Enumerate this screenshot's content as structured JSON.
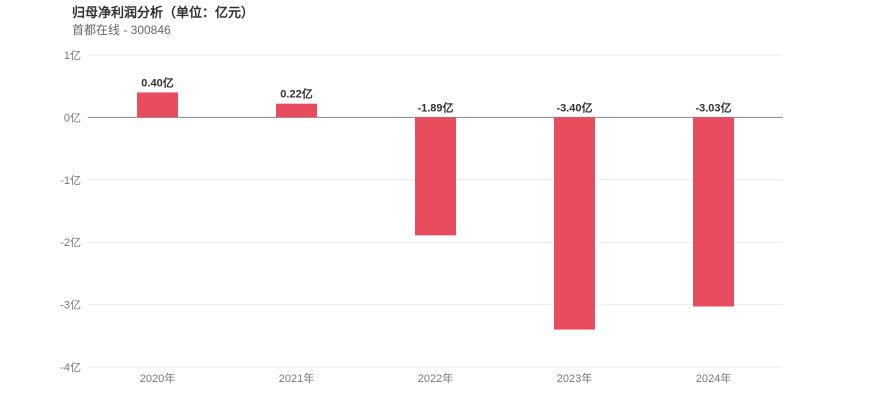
{
  "header": {
    "title": "归母净利润分析（单位：亿元）",
    "subtitle": "首都在线 - 300846"
  },
  "colors": {
    "bar": "#e84c5f",
    "grid": "#ececec",
    "zero_line": "#888888"
  },
  "chart_data": {
    "type": "bar",
    "title": "归母净利润分析（单位：亿元）",
    "subtitle": "首都在线 - 300846",
    "categories": [
      "2020年",
      "2021年",
      "2022年",
      "2023年",
      "2024年"
    ],
    "values": [
      0.4,
      0.22,
      -1.89,
      -3.4,
      -3.03
    ],
    "data_labels": [
      "0.40亿",
      "0.22亿",
      "-1.89亿",
      "-3.40亿",
      "-3.03亿"
    ],
    "ylim": [
      -4,
      1
    ],
    "yticks": [
      1,
      0,
      -1,
      -2,
      -3,
      -4
    ],
    "ytick_labels": [
      "1亿",
      "0亿",
      "-1亿",
      "-2亿",
      "-3亿",
      "-4亿"
    ],
    "xlabel": "",
    "ylabel": "",
    "grid": true,
    "legend": "none"
  }
}
